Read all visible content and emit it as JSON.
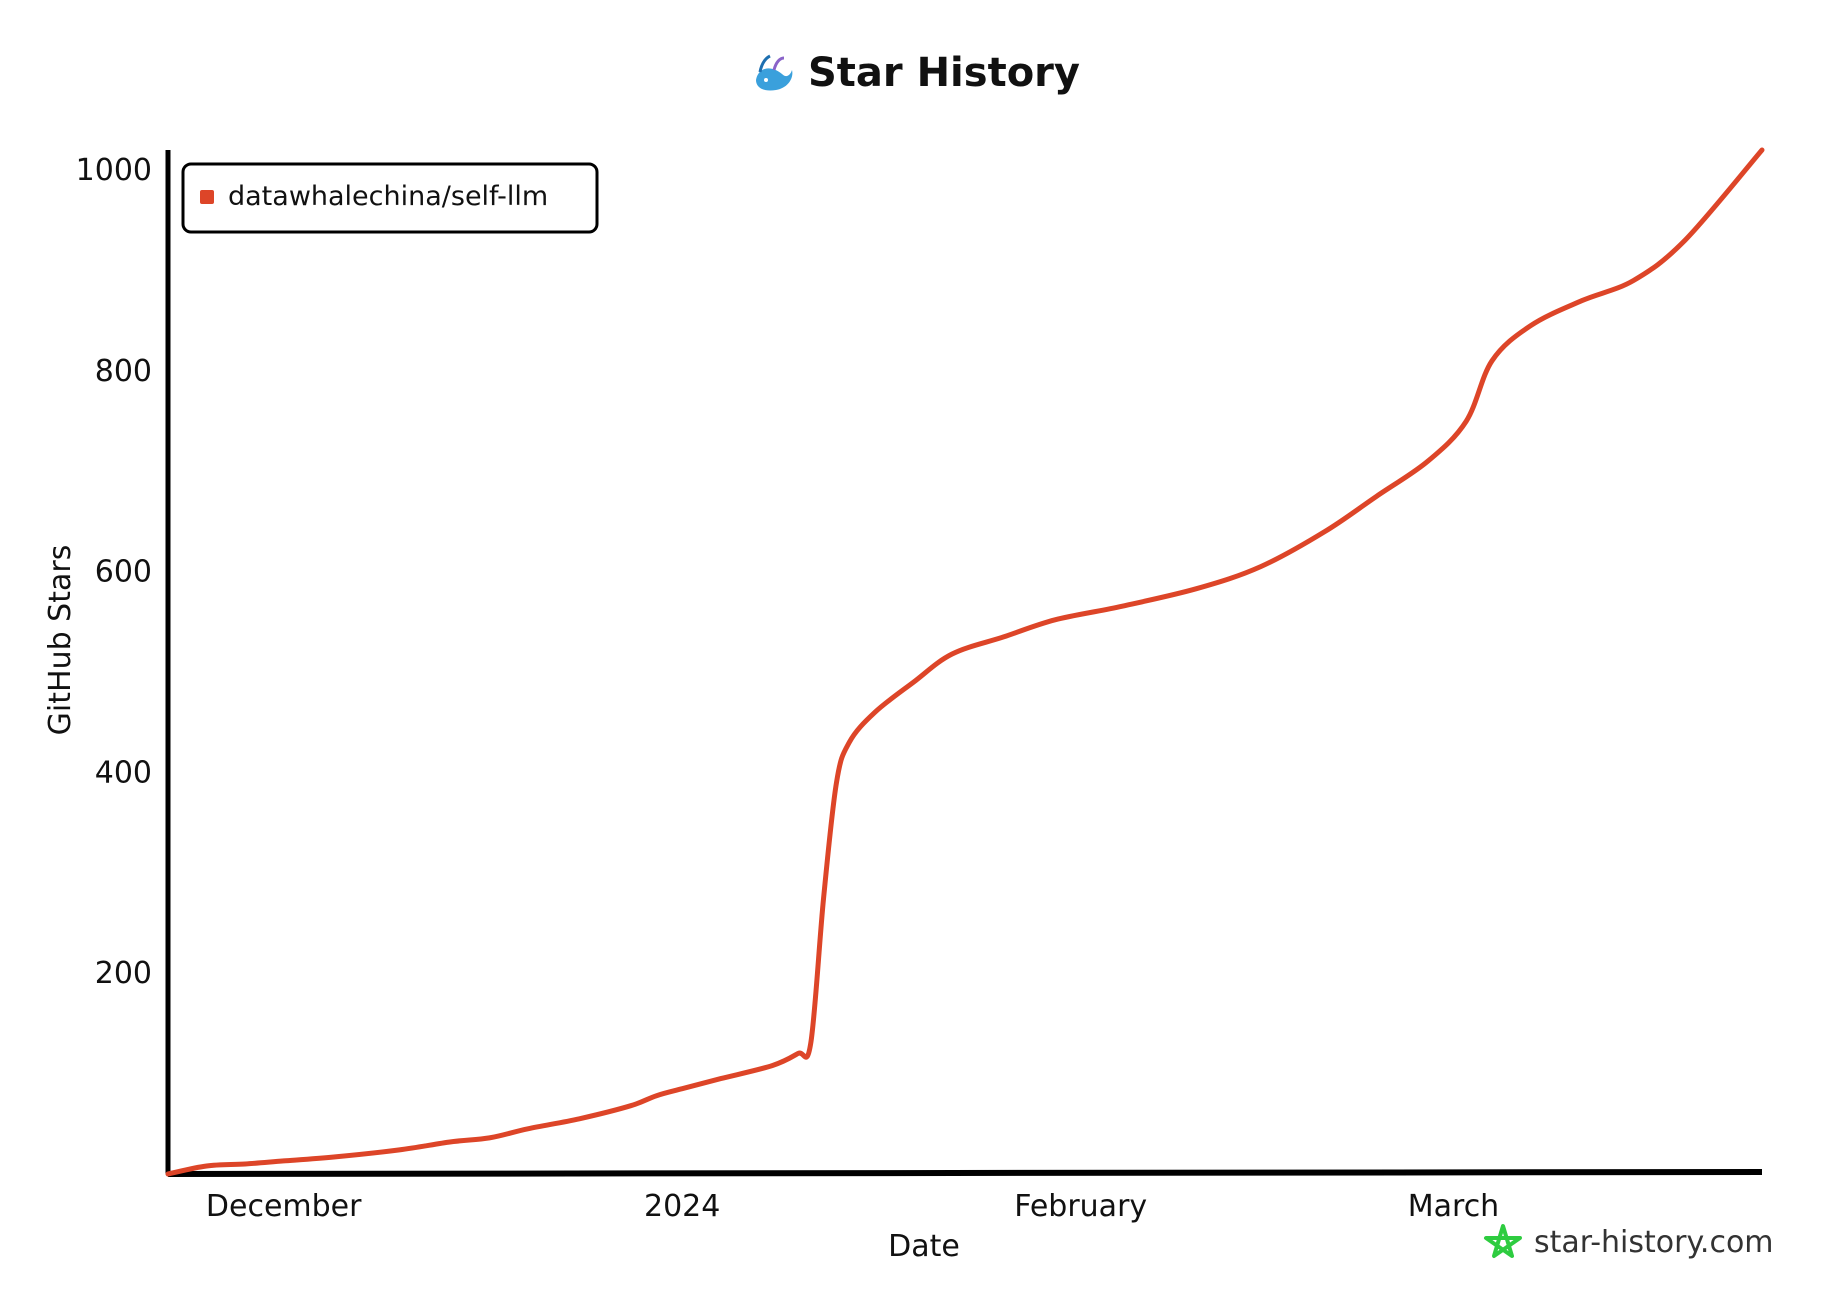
{
  "chart_data": {
    "type": "line",
    "title": "Star History",
    "xlabel": "Date",
    "ylabel": "GitHub Stars",
    "x_tick_labels": [
      "December",
      "2024",
      "February",
      "March"
    ],
    "x_ticks": [
      "2023-12-01",
      "2024-01-01",
      "2024-02-01",
      "2024-03-01"
    ],
    "x_range": [
      "2023-11-22",
      "2024-03-25"
    ],
    "y_ticks": [
      200,
      400,
      600,
      800,
      1000
    ],
    "ylim": [
      0,
      1020
    ],
    "grid": false,
    "legend_position": "top-left",
    "series": [
      {
        "name": "datawhalechina/self-llm",
        "color": "#dd4528",
        "points": [
          [
            "2023-11-22",
            0
          ],
          [
            "2023-11-25",
            8
          ],
          [
            "2023-11-28",
            10
          ],
          [
            "2023-12-01",
            13
          ],
          [
            "2023-12-05",
            17
          ],
          [
            "2023-12-10",
            24
          ],
          [
            "2023-12-14",
            32
          ],
          [
            "2023-12-17",
            36
          ],
          [
            "2023-12-20",
            45
          ],
          [
            "2023-12-24",
            55
          ],
          [
            "2023-12-28",
            68
          ],
          [
            "2023-12-30",
            78
          ],
          [
            "2024-01-01",
            85
          ],
          [
            "2024-01-04",
            95
          ],
          [
            "2024-01-08",
            108
          ],
          [
            "2024-01-10",
            120
          ],
          [
            "2024-01-11",
            130
          ],
          [
            "2024-01-12",
            275
          ],
          [
            "2024-01-13",
            390
          ],
          [
            "2024-01-14",
            430
          ],
          [
            "2024-01-16",
            460
          ],
          [
            "2024-01-19",
            490
          ],
          [
            "2024-01-22",
            518
          ],
          [
            "2024-01-26",
            535
          ],
          [
            "2024-01-30",
            552
          ],
          [
            "2024-02-04",
            565
          ],
          [
            "2024-02-10",
            583
          ],
          [
            "2024-02-15",
            605
          ],
          [
            "2024-02-20",
            640
          ],
          [
            "2024-02-24",
            675
          ],
          [
            "2024-02-28",
            710
          ],
          [
            "2024-03-02",
            750
          ],
          [
            "2024-03-04",
            810
          ],
          [
            "2024-03-07",
            845
          ],
          [
            "2024-03-11",
            870
          ],
          [
            "2024-03-15",
            890
          ],
          [
            "2024-03-19",
            930
          ],
          [
            "2024-03-25",
            1020
          ]
        ]
      }
    ]
  },
  "branding": {
    "site": "star-history.com",
    "logo_icon": "whale-icon",
    "site_icon": "star-outline-icon",
    "accent_color": "#2ecc40"
  }
}
